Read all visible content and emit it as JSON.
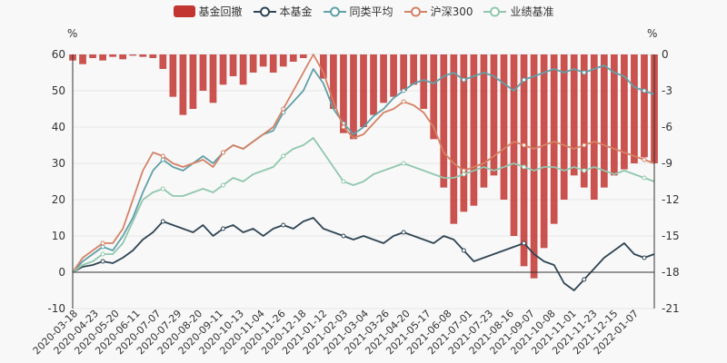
{
  "chart_data": {
    "type": "line",
    "title": "",
    "legend": {
      "position": "top-center",
      "items": [
        {
          "label": "基金回撤",
          "color": "#c23531",
          "kind": "bar"
        },
        {
          "label": "本基金",
          "color": "#2f4554",
          "kind": "line"
        },
        {
          "label": "同类平均",
          "color": "#61a0a8",
          "kind": "line"
        },
        {
          "label": "沪深300",
          "color": "#d48265",
          "kind": "line"
        },
        {
          "label": "业绩基准",
          "color": "#91c7ae",
          "kind": "line"
        }
      ]
    },
    "left_axis": {
      "unit": "%",
      "min": -10,
      "max": 60,
      "ticks": [
        -10,
        0,
        10,
        20,
        30,
        40,
        50,
        60
      ]
    },
    "right_axis": {
      "unit": "%",
      "min": -21,
      "max": 0,
      "ticks": [
        0,
        -3,
        -6,
        -9,
        -12,
        -15,
        -18,
        -21
      ]
    },
    "x_tick_labels": [
      "2020-03-18",
      "2020-04-23",
      "2020-05-20",
      "2020-06-11",
      "2020-07-07",
      "2020-07-29",
      "2020-08-20",
      "2020-09-11",
      "2020-10-13",
      "2020-11-04",
      "2020-11-26",
      "2020-12-18",
      "2021-01-12",
      "2021-02-03",
      "2021-03-04",
      "2021-03-26",
      "2021-04-20",
      "2021-05-17",
      "2021-06-08",
      "2021-07-01",
      "2021-07-23",
      "2021-08-16",
      "2021-09-07",
      "2021-10-08",
      "2021-11-01",
      "2021-11-23",
      "2021-12-15",
      "2022-01-07"
    ],
    "series": [
      {
        "name": "本基金",
        "axis": "left",
        "color": "#2f4554",
        "values": [
          0,
          1.5,
          2,
          3,
          2.5,
          4,
          6,
          9,
          11,
          14,
          13,
          12,
          11,
          13,
          10,
          12,
          13,
          11,
          12,
          10,
          12,
          13,
          12,
          14,
          15,
          12,
          11,
          10,
          9,
          10,
          9,
          8,
          10,
          11,
          10,
          9,
          8,
          10,
          9,
          6,
          3,
          4,
          5,
          6,
          7,
          8,
          5,
          3,
          2,
          -3,
          -5,
          -2,
          1,
          4,
          6,
          8,
          5,
          4,
          5
        ]
      },
      {
        "name": "同类平均",
        "axis": "left",
        "color": "#61a0a8",
        "values": [
          0,
          3,
          5,
          7,
          6,
          10,
          15,
          22,
          28,
          31,
          29,
          28,
          30,
          32,
          30,
          33,
          35,
          34,
          36,
          38,
          39,
          44,
          47,
          50,
          56,
          52,
          45,
          41,
          38,
          40,
          43,
          45,
          48,
          50,
          52,
          53,
          52,
          54,
          55,
          53,
          54,
          55,
          54,
          52,
          50,
          53,
          54,
          55,
          56,
          55,
          56,
          55,
          56,
          57,
          55,
          54,
          51,
          50,
          49
        ]
      },
      {
        "name": "沪深300",
        "axis": "left",
        "color": "#d48265",
        "values": [
          0,
          4,
          6,
          8,
          8,
          12,
          20,
          28,
          33,
          32,
          30,
          29,
          30,
          31,
          29,
          33,
          35,
          34,
          36,
          38,
          40,
          45,
          50,
          55,
          60,
          55,
          47,
          40,
          37,
          38,
          41,
          44,
          45,
          47,
          46,
          44,
          40,
          33,
          30,
          28,
          29,
          30,
          32,
          34,
          36,
          35,
          34,
          35,
          36,
          35,
          34,
          35,
          36,
          35,
          34,
          33,
          32,
          31,
          30
        ]
      },
      {
        "name": "业绩基准",
        "axis": "left",
        "color": "#91c7ae",
        "values": [
          0,
          2,
          3,
          5,
          5,
          8,
          14,
          20,
          22,
          23,
          21,
          21,
          22,
          23,
          22,
          24,
          26,
          25,
          27,
          28,
          29,
          32,
          34,
          35,
          37,
          33,
          29,
          25,
          24,
          25,
          27,
          28,
          29,
          30,
          29,
          28,
          27,
          26,
          26,
          27,
          28,
          29,
          28,
          29,
          30,
          29,
          28,
          29,
          29,
          28,
          29,
          28,
          29,
          28,
          27,
          28,
          27,
          26,
          25
        ]
      },
      {
        "name": "基金回撤",
        "axis": "right",
        "color": "#c23531",
        "kind": "bar",
        "values": [
          -0.5,
          -0.8,
          -0.3,
          -0.5,
          -0.2,
          -0.4,
          -0.1,
          -0.2,
          -0.3,
          -1.2,
          -3.5,
          -5.0,
          -4.5,
          -3.0,
          -4.0,
          -2.5,
          -1.8,
          -2.5,
          -1.5,
          -1.0,
          -1.5,
          -1.0,
          -0.6,
          -0.3,
          0,
          -2.0,
          -4.5,
          -6.5,
          -7.0,
          -6.0,
          -5.0,
          -4.0,
          -3.5,
          -3.0,
          -2.5,
          -4.5,
          -7.0,
          -11.0,
          -14.0,
          -13.0,
          -12.5,
          -11.0,
          -10.0,
          -12.0,
          -15.0,
          -17.5,
          -18.5,
          -16.0,
          -14.0,
          -12.0,
          -10.0,
          -11.0,
          -12.0,
          -11.0,
          -10.0,
          -9.5,
          -9.0,
          -8.5,
          -9.0
        ]
      }
    ]
  }
}
